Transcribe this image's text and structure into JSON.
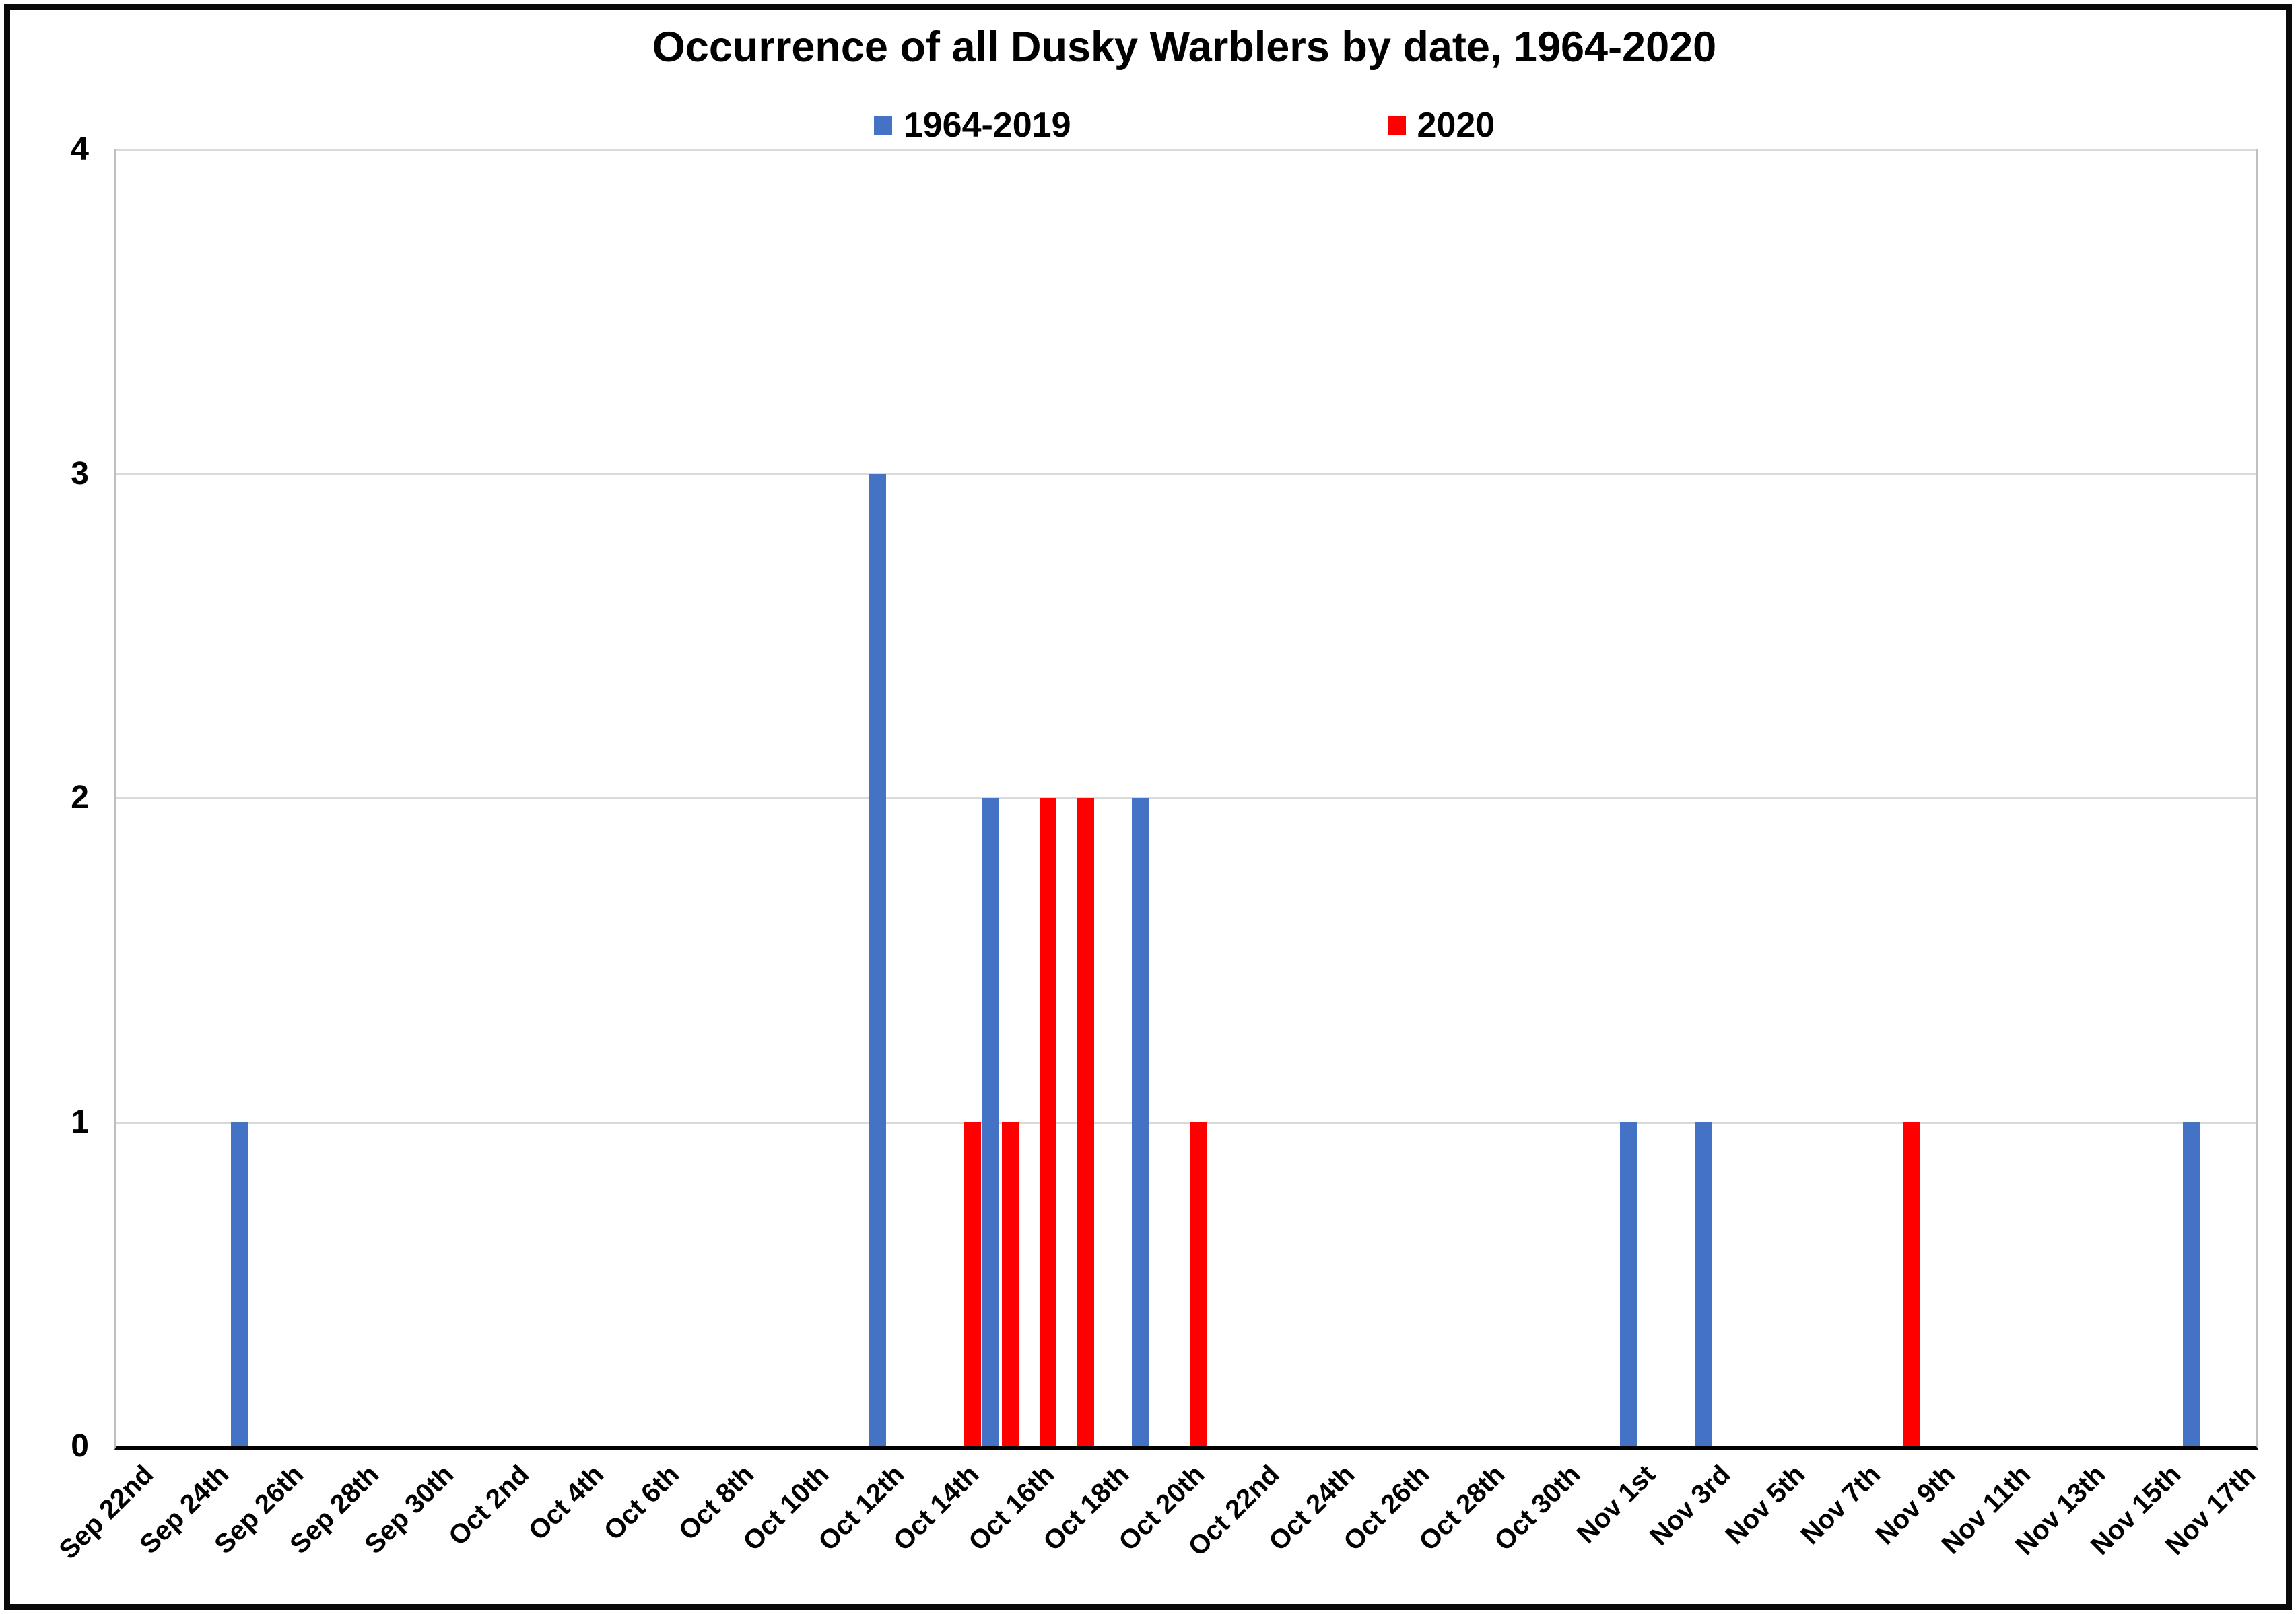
{
  "chart_data": {
    "type": "bar",
    "title": "Occurrence of all Dusky Warblers by date, 1964-2020",
    "legend_position": "top",
    "grid": true,
    "colors": {
      "series_1964_2019": "#4472C4",
      "series_2020": "#FF0000",
      "gridline": "#D9D9D9",
      "axis": "#000000",
      "plot_border": "#BFBFBF"
    },
    "x_axis": {
      "first_day": "Sep 22nd",
      "last_day": "Nov 17th",
      "total_day_slots": 57,
      "tick_labels": [
        "Sep 22nd",
        "Sep 24th",
        "Sep 26th",
        "Sep 28th",
        "Sep 30th",
        "Oct 2nd",
        "Oct 4th",
        "Oct 6th",
        "Oct 8th",
        "Oct 10th",
        "Oct 12th",
        "Oct 14th",
        "Oct 16th",
        "Oct 18th",
        "Oct 20th",
        "Oct 22nd",
        "Oct 24th",
        "Oct 26th",
        "Oct 28th",
        "Oct 30th",
        "Nov 1st",
        "Nov 3rd",
        "Nov 5th",
        "Nov 7th",
        "Nov 9th",
        "Nov 11th",
        "Nov 13th",
        "Nov 15th",
        "Nov 17th"
      ],
      "tick_label_day_step": 2
    },
    "y_axis": {
      "min": 0,
      "max": 4,
      "ticks": [
        4,
        3,
        2,
        1,
        0
      ]
    },
    "series": [
      {
        "name": "1964-2019",
        "color": "#4472C4",
        "points": [
          {
            "date": "Sep 25th",
            "day_index": 3,
            "value": 1
          },
          {
            "date": "Oct 12th",
            "day_index": 20,
            "value": 3
          },
          {
            "date": "Oct 15th",
            "day_index": 23,
            "value": 2
          },
          {
            "date": "Oct 19th",
            "day_index": 27,
            "value": 2
          },
          {
            "date": "Nov 1st",
            "day_index": 40,
            "value": 1
          },
          {
            "date": "Nov 3rd",
            "day_index": 42,
            "value": 1
          },
          {
            "date": "Nov 16th",
            "day_index": 55,
            "value": 1
          }
        ]
      },
      {
        "name": "2020",
        "color": "#FF0000",
        "points": [
          {
            "date": "Oct 14th",
            "day_index": 22,
            "value": 1
          },
          {
            "date": "Oct 15th",
            "day_index": 23,
            "value": 1
          },
          {
            "date": "Oct 16th",
            "day_index": 24,
            "value": 2
          },
          {
            "date": "Oct 17th",
            "day_index": 25,
            "value": 2
          },
          {
            "date": "Oct 20th",
            "day_index": 28,
            "value": 1
          },
          {
            "date": "Nov 8th",
            "day_index": 47,
            "value": 1
          }
        ]
      }
    ]
  }
}
